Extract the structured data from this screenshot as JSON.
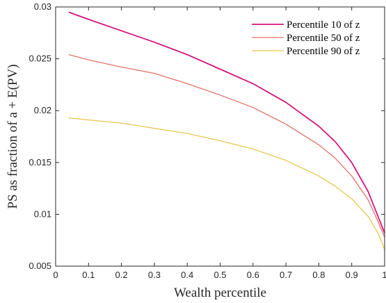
{
  "chart_data": {
    "type": "line",
    "title": "",
    "xlabel": "Wealth percentile",
    "ylabel": "PS as fraction of a + E(PV)",
    "xlim": [
      0,
      1
    ],
    "ylim": [
      0.005,
      0.03
    ],
    "xticks": [
      0,
      0.1,
      0.2,
      0.3,
      0.4,
      0.5,
      0.6,
      0.7,
      0.8,
      0.9,
      1
    ],
    "xtick_labels": [
      "0",
      "0.1",
      "0.2",
      "0.3",
      "0.4",
      "0.5",
      "0.6",
      "0.7",
      "0.8",
      "0.9",
      "1"
    ],
    "yticks": [
      0.005,
      0.01,
      0.015,
      0.02,
      0.025,
      0.03
    ],
    "ytick_labels": [
      "0.005",
      "0.01",
      "0.015",
      "0.02",
      "0.025",
      "0.03"
    ],
    "grid": false,
    "legend_position": "top-right",
    "series": [
      {
        "name": "Percentile 10 of z",
        "color": "#d4147a",
        "x": [
          0.04,
          0.1,
          0.2,
          0.3,
          0.4,
          0.5,
          0.6,
          0.7,
          0.8,
          0.85,
          0.9,
          0.95,
          0.98,
          1.0
        ],
        "y": [
          0.0295,
          0.0288,
          0.0277,
          0.0266,
          0.0254,
          0.024,
          0.0226,
          0.0208,
          0.0185,
          0.017,
          0.015,
          0.0122,
          0.0098,
          0.0082
        ]
      },
      {
        "name": "Percentile 50 of z",
        "color": "#e07068",
        "x": [
          0.04,
          0.1,
          0.2,
          0.3,
          0.31,
          0.4,
          0.5,
          0.6,
          0.7,
          0.8,
          0.85,
          0.9,
          0.95,
          0.98,
          1.0
        ],
        "y": [
          0.0254,
          0.0249,
          0.0242,
          0.0236,
          0.0235,
          0.0226,
          0.0215,
          0.0203,
          0.0187,
          0.0167,
          0.0154,
          0.0137,
          0.0114,
          0.0093,
          0.0078
        ]
      },
      {
        "name": "Percentile 90 of z",
        "color": "#e8c64e",
        "x": [
          0.04,
          0.1,
          0.2,
          0.3,
          0.4,
          0.5,
          0.6,
          0.7,
          0.8,
          0.85,
          0.9,
          0.95,
          0.98,
          1.0
        ],
        "y": [
          0.0193,
          0.0191,
          0.0188,
          0.0183,
          0.0178,
          0.0171,
          0.0163,
          0.0152,
          0.0137,
          0.0127,
          0.0115,
          0.0098,
          0.0082,
          0.0066
        ]
      }
    ]
  }
}
